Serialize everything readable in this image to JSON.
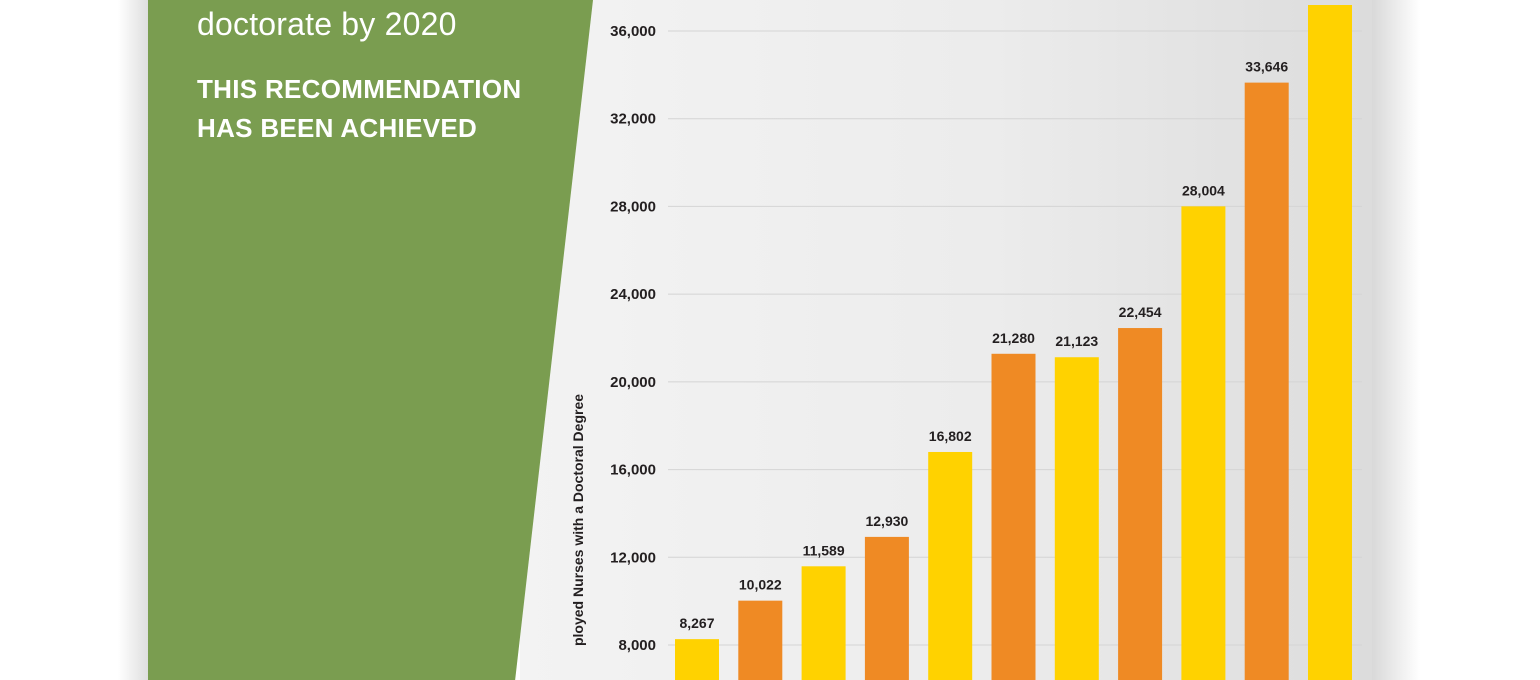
{
  "panel": {
    "headline": "doctorate by 2020",
    "status": "THIS RECOMMENDATION HAS BEEN ACHIEVED",
    "color": "#7a9d50"
  },
  "chart_data": {
    "type": "bar",
    "ylabel": "ployed Nurses with a Doctoral Degree",
    "ylim": [
      7000,
      37200
    ],
    "yticks": [
      "8,000",
      "12,000",
      "16,000",
      "20,000",
      "24,000",
      "28,000",
      "32,000",
      "36,000"
    ],
    "ytick_values": [
      8000,
      12000,
      16000,
      20000,
      24000,
      28000,
      32000,
      36000
    ],
    "grid": true,
    "values": [
      8267,
      10022,
      11589,
      12930,
      16802,
      21280,
      21123,
      22454,
      28004,
      33646,
      37200
    ],
    "value_labels": [
      "8,267",
      "10,022",
      "11,589",
      "12,930",
      "16,802",
      "21,280",
      "21,123",
      "22,454",
      "28,004",
      "33,646",
      ""
    ],
    "bar_colors": [
      "#ffd200",
      "#ef8a24",
      "#ffd200",
      "#ef8a24",
      "#ffd200",
      "#ef8a24",
      "#ffd200",
      "#ef8a24",
      "#ffd200",
      "#ef8a24",
      "#ffd200"
    ]
  }
}
